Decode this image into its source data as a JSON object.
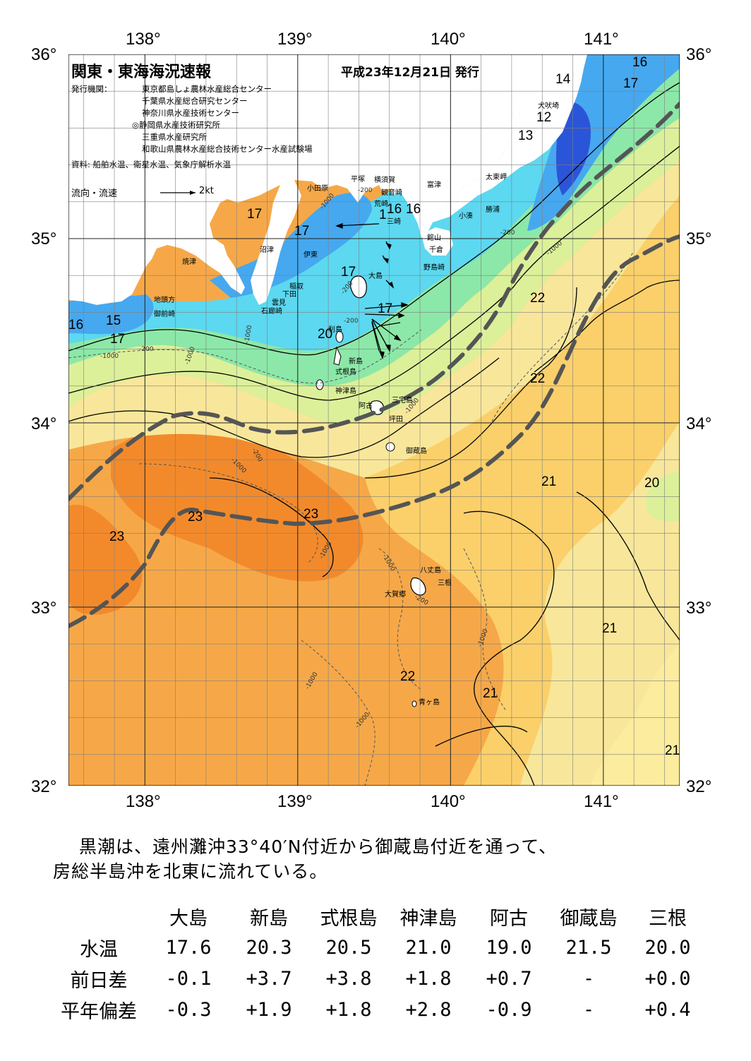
{
  "header": {
    "title": "関東・東海海況速報",
    "date": "平成23年12月21日 発行",
    "issuer_label": "発行機関：",
    "issuers": [
      "東京都島しょ農林水産総合センター",
      "千葉県水産総合研究センター",
      "神奈川県水産技術センター",
      "◎静岡県水産技術研究所",
      "三重県水産研究所",
      "和歌山県農林水産総合技術センター水産試験場"
    ],
    "source": "資料: 船舶水温、衛星水温、気象庁解析水温",
    "legend_label": "流向・流速",
    "legend_scale": "2kt"
  },
  "axes": {
    "lon_ticks": [
      "138°",
      "139°",
      "140°",
      "141°"
    ],
    "lat_ticks": [
      "36°",
      "35°",
      "34°",
      "33°",
      "32°"
    ]
  },
  "colors": {
    "blue_deep": "#2b55d8",
    "blue": "#46a8ef",
    "cyan": "#5cd8f0",
    "green": "#8ce8a8",
    "yellow_green": "#dcf09a",
    "yellow": "#f8e79a",
    "light_orange": "#fbd06a",
    "orange": "#f6a848",
    "dark_orange": "#f28a2c",
    "kuroshio_line": "#555555"
  },
  "places": [
    "焼津",
    "沼津",
    "伊東",
    "稲取",
    "下田",
    "雲見",
    "石廊崎",
    "地頭方",
    "御前崎",
    "小田原",
    "平塚",
    "横須賀",
    "観音崎",
    "荒崎",
    "三崎",
    "富津",
    "館山",
    "千倉",
    "野島崎",
    "小湊",
    "勝浦",
    "太東岬",
    "犬吠埼",
    "大島",
    "利島",
    "新島",
    "式根島",
    "神津島",
    "三宅島",
    "阿古",
    "坪田",
    "御蔵島",
    "八丈島",
    "三根",
    "大賀郷",
    "青ヶ島"
  ],
  "isotherm_labels": [
    "16",
    "14",
    "17",
    "12",
    "13",
    "17",
    "17",
    "1",
    "16",
    "16",
    "17",
    "17",
    "20",
    "16",
    "15",
    "17",
    "22",
    "22",
    "21",
    "20",
    "23",
    "23",
    "23",
    "21",
    "22",
    "21",
    "21"
  ],
  "bathymetry_labels": [
    "-200",
    "-1000"
  ],
  "summary": {
    "line1": "黒潮は、遠州灘沖33°40′N付近から御蔵島付近を通って、",
    "line2": "房総半島沖を北東に流れている。"
  },
  "obs_table": {
    "stations": [
      "大島",
      "新島",
      "式根島",
      "神津島",
      "阿古",
      "御蔵島",
      "三根"
    ],
    "rows": [
      {
        "label": "水温",
        "values": [
          "17.6",
          "20.3",
          "20.5",
          "21.0",
          "19.0",
          "21.5",
          "20.0"
        ]
      },
      {
        "label": "前日差",
        "values": [
          "-0.1",
          "+3.7",
          "+3.8",
          "+1.8",
          "+0.7",
          "-",
          "+0.0"
        ]
      },
      {
        "label": "平年偏差",
        "values": [
          "-0.3",
          "+1.9",
          "+1.8",
          "+2.8",
          "-0.9",
          "-",
          "+0.4"
        ]
      }
    ]
  }
}
